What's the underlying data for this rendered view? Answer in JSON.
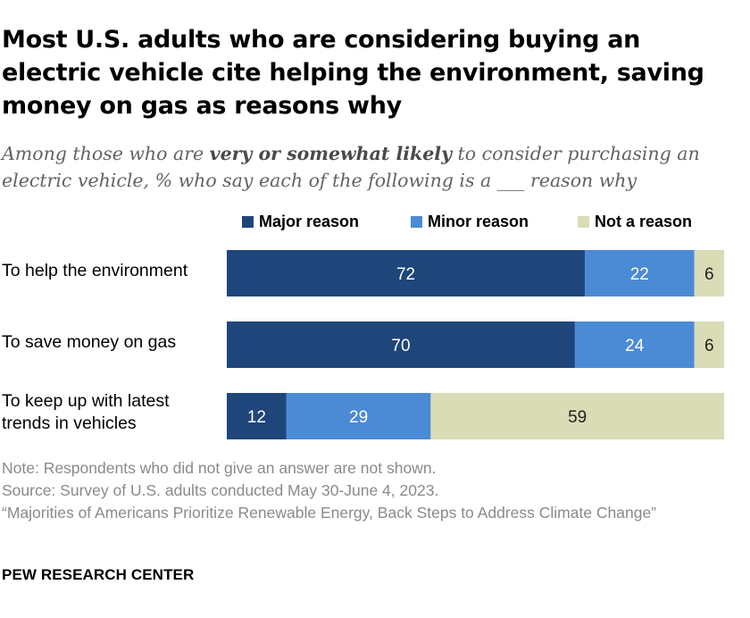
{
  "title": "Most U.S. adults who are considering buying an electric vehicle cite helping the environment, saving money on gas as reasons why",
  "subtitle": {
    "before": "Among those who are ",
    "emphasis": "very or somewhat likely",
    "after": " to consider purchasing an electric vehicle, % who say each of the following is a ___ reason why"
  },
  "colors": {
    "major": "#1f467a",
    "minor": "#4b8ad5",
    "not": "#d9dcb5"
  },
  "chart_data": {
    "type": "bar",
    "orientation": "horizontal",
    "stacked": true,
    "categories": [
      "To help the environment",
      "To save money on gas",
      "To keep up with latest trends in vehicles"
    ],
    "category_lines": [
      [
        "To help the environment"
      ],
      [
        "To save money on gas"
      ],
      [
        "To keep up with latest",
        "trends in vehicles"
      ]
    ],
    "series": [
      {
        "name": "Major reason",
        "values": [
          72,
          70,
          12
        ]
      },
      {
        "name": "Minor reason",
        "values": [
          22,
          24,
          29
        ]
      },
      {
        "name": "Not a reason",
        "values": [
          6,
          6,
          59
        ]
      }
    ],
    "xlim": [
      0,
      100
    ],
    "grid": false,
    "legend": "top-right"
  },
  "notes": [
    "Note: Respondents who did not give an answer are not shown.",
    "Source: Survey of U.S. adults conducted May 30-June 4, 2023.",
    "“Majorities of Americans Prioritize Renewable Energy, Back Steps to Address Climate Change”"
  ],
  "brand": "PEW RESEARCH CENTER"
}
